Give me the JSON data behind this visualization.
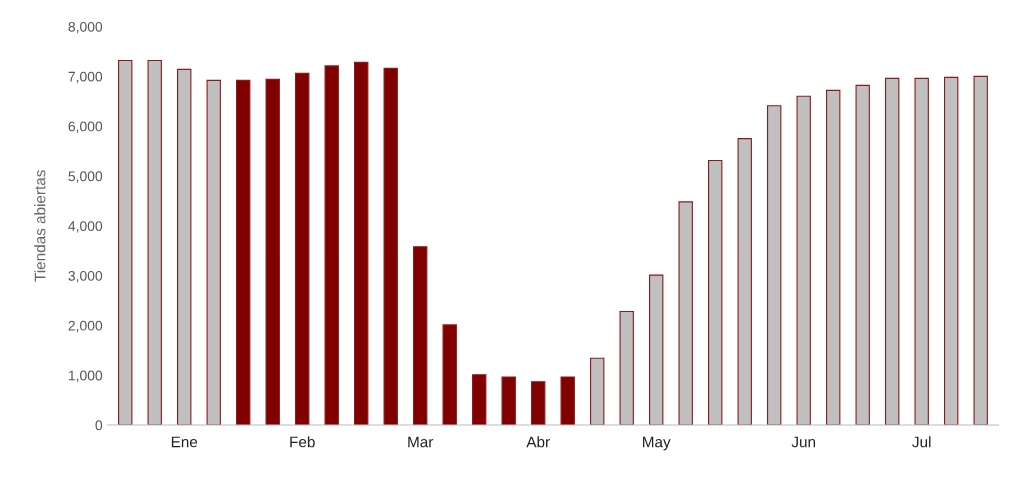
{
  "chart_data": {
    "type": "bar",
    "ylabel": "Tiendas abiertas",
    "categories": [
      null,
      null,
      "Ene",
      null,
      null,
      null,
      "Feb",
      null,
      null,
      null,
      "Mar",
      null,
      null,
      null,
      "Abr",
      null,
      null,
      null,
      "May",
      null,
      null,
      null,
      null,
      "Jun",
      null,
      null,
      null,
      "Jul",
      null,
      null
    ],
    "values": [
      7320,
      7320,
      7140,
      6920,
      6920,
      6940,
      7060,
      7210,
      7280,
      7160,
      3580,
      2010,
      1010,
      965,
      870,
      965,
      1340,
      2280,
      3010,
      4480,
      5310,
      5750,
      6410,
      6600,
      6720,
      6820,
      6960,
      6960,
      6980,
      7000
    ],
    "colors": [
      "#c0c0c0",
      "#c0c0c0",
      "#c0c0c0",
      "#c0c0c0",
      "#800000",
      "#800000",
      "#800000",
      "#800000",
      "#800000",
      "#800000",
      "#800000",
      "#800000",
      "#800000",
      "#800000",
      "#800000",
      "#800000",
      "#c0c0c0",
      "#c0c0c0",
      "#c0c0c0",
      "#c0c0c0",
      "#c0c0c0",
      "#c0c0c0",
      "#c0c0c0",
      "#c0c0c0",
      "#c0c0c0",
      "#c0c0c0",
      "#c0c0c0",
      "#c0c0c0",
      "#c0c0c0",
      "#c0c0c0"
    ],
    "ylim": [
      0,
      8000
    ],
    "yticks": [
      0,
      {
        "value": 1000,
        "label": "1,000"
      },
      {
        "value": 2000,
        "label": "2,000"
      },
      {
        "value": 3000,
        "label": "3,000"
      },
      {
        "value": 4000,
        "label": "4,000"
      },
      {
        "value": 5000,
        "label": "5,000"
      },
      {
        "value": 6000,
        "label": "6,000"
      },
      {
        "value": 7000,
        "label": "7,000"
      },
      {
        "value": 8000,
        "label": "8,000"
      }
    ],
    "grid": false,
    "legend": false
  }
}
